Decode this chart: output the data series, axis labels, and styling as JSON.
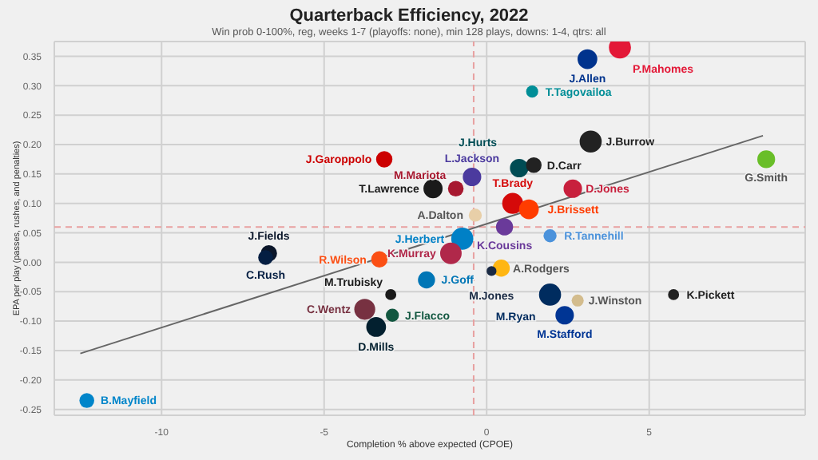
{
  "chart_data": {
    "type": "bubble",
    "title": "Quarterback Efficiency, 2022",
    "subtitle": "Win prob 0-100%, reg, weeks 1-7 (playoffs: none), min 128 plays, downs: 1-4, qtrs: all",
    "xlabel": "Completion % above expected (CPOE)",
    "ylabel": "EPA per play (passes, rushes, and penalties)",
    "xlim": [
      -13.3,
      9.8
    ],
    "ylim": [
      -0.26,
      0.375
    ],
    "xticks": [
      -10,
      -5,
      0,
      5
    ],
    "yticks": [
      {
        "value": -0.25,
        "label": "-0.25"
      },
      {
        "value": -0.2,
        "label": "-0.20"
      },
      {
        "value": -0.15,
        "label": "-0.15"
      },
      {
        "value": -0.1,
        "label": "-0.10"
      },
      {
        "value": -0.05,
        "label": "-0.05"
      },
      {
        "value": 0,
        "label": "0.00"
      },
      {
        "value": 0.05,
        "label": "0.05"
      },
      {
        "value": 0.1,
        "label": "0.10"
      },
      {
        "value": 0.15,
        "label": "0.15"
      },
      {
        "value": 0.2,
        "label": "0.20"
      },
      {
        "value": 0.25,
        "label": "0.25"
      },
      {
        "value": 0.3,
        "label": "0.30"
      },
      {
        "value": 0.35,
        "label": "0.35"
      }
    ],
    "grid": true,
    "legend": false,
    "ref_lines": [
      {
        "axis": "x",
        "value": -0.4,
        "color": "#e8a0a0",
        "line_style": "dashed"
      },
      {
        "axis": "y",
        "value": 0.06,
        "color": "#e8a0a0",
        "line_style": "dashed"
      }
    ],
    "series": [
      {
        "type": "line",
        "color": "#666666",
        "x": [
          -12.5,
          8.5
        ],
        "values": [
          -0.155,
          0.215
        ]
      },
      {
        "name": "P.Mahomes",
        "color": "#e31837",
        "x": [
          4.1
        ],
        "values": [
          0.365
        ],
        "sizes": [
          1
        ]
      },
      {
        "name": "J.Allen",
        "color": "#00338d",
        "x": [
          3.1
        ],
        "values": [
          0.345
        ],
        "sizes": [
          0.8
        ]
      },
      {
        "name": "T.Tagovailoa",
        "color": "#008e97",
        "x": [
          1.4
        ],
        "values": [
          0.29
        ],
        "sizes": [
          0.3
        ]
      },
      {
        "name": "J.Burrow",
        "color": "#222222",
        "x": [
          3.2
        ],
        "values": [
          0.205
        ],
        "sizes": [
          1
        ]
      },
      {
        "name": "G.Smith",
        "color": "#69be28",
        "x": [
          8.6
        ],
        "values": [
          0.175
        ],
        "sizes": [
          0.65
        ]
      },
      {
        "name": "J.Hurts",
        "color": "#004c54",
        "x": [
          1.0
        ],
        "values": [
          0.16
        ],
        "sizes": [
          0.7
        ]
      },
      {
        "name": "D.Carr",
        "color": "#222222",
        "x": [
          1.45
        ],
        "values": [
          0.165
        ],
        "sizes": [
          0.5
        ]
      },
      {
        "name": "L.Jackson",
        "color": "#4b3a9e",
        "x": [
          -0.45
        ],
        "values": [
          0.145
        ],
        "sizes": [
          0.7
        ]
      },
      {
        "name": "D.Jones",
        "color": "#c8203d",
        "x": [
          2.65
        ],
        "values": [
          0.125
        ],
        "sizes": [
          0.7
        ]
      },
      {
        "name": "M.Mariota",
        "color": "#a71930",
        "x": [
          -0.95
        ],
        "values": [
          0.125
        ],
        "sizes": [
          0.5
        ]
      },
      {
        "name": "T.Lawrence",
        "color": "#1a1a1a",
        "x": [
          -1.65
        ],
        "values": [
          0.125
        ],
        "sizes": [
          0.75
        ]
      },
      {
        "name": "J.Garoppolo",
        "color": "#cc0000",
        "x": [
          -3.15
        ],
        "values": [
          0.175
        ],
        "sizes": [
          0.55
        ]
      },
      {
        "name": "T.Brady",
        "color": "#d50a0a",
        "x": [
          0.8
        ],
        "values": [
          0.1
        ],
        "sizes": [
          0.9
        ]
      },
      {
        "name": "J.Brissett",
        "color": "#ff3c00",
        "x": [
          1.3
        ],
        "values": [
          0.09
        ],
        "sizes": [
          0.8
        ]
      },
      {
        "name": "A.Dalton",
        "color": "#e8cfa8",
        "x": [
          -0.35
        ],
        "values": [
          0.08
        ],
        "sizes": [
          0.35
        ]
      },
      {
        "name": "K.Cousins",
        "color": "#6a3a9a",
        "x": [
          0.55
        ],
        "values": [
          0.06
        ],
        "sizes": [
          0.6
        ]
      },
      {
        "name": "R.Tannehill",
        "color": "#4b92db",
        "x": [
          1.95
        ],
        "values": [
          0.045
        ],
        "sizes": [
          0.35
        ]
      },
      {
        "name": "J.Herbert",
        "color": "#0080c6",
        "x": [
          -0.75
        ],
        "values": [
          0.04
        ],
        "sizes": [
          1
        ]
      },
      {
        "name": "K.Murray",
        "color": "#b0284a",
        "x": [
          -1.1
        ],
        "values": [
          0.015
        ],
        "sizes": [
          0.95
        ]
      },
      {
        "name": "A.Rodgers",
        "color": "#ffb612",
        "x": [
          0.45
        ],
        "values": [
          -0.01
        ],
        "sizes": [
          0.6
        ]
      },
      {
        "name": "M.Jones",
        "color": "#1a2a44",
        "x": [
          0.15
        ],
        "values": [
          -0.015
        ],
        "sizes": [
          0.2
        ]
      },
      {
        "name": "J.Goff",
        "color": "#0076b6",
        "x": [
          -1.85
        ],
        "values": [
          -0.03
        ],
        "sizes": [
          0.6
        ]
      },
      {
        "name": "M.Ryan",
        "color": "#002c5f",
        "x": [
          1.95
        ],
        "values": [
          -0.055
        ],
        "sizes": [
          1
        ]
      },
      {
        "name": "J.Winston",
        "color": "#d3bc8d",
        "x": [
          2.8
        ],
        "values": [
          -0.065
        ],
        "sizes": [
          0.3
        ]
      },
      {
        "name": "M.Stafford",
        "color": "#003594",
        "x": [
          2.4
        ],
        "values": [
          -0.09
        ],
        "sizes": [
          0.7
        ]
      },
      {
        "name": "K.Pickett",
        "color": "#222222",
        "x": [
          5.75
        ],
        "values": [
          -0.055
        ],
        "sizes": [
          0.25
        ]
      },
      {
        "name": "R.Wilson",
        "color": "#fb4f14",
        "x": [
          -3.3
        ],
        "values": [
          0.005
        ],
        "sizes": [
          0.55
        ]
      },
      {
        "name": "J.Fields",
        "color": "#0b162a",
        "x": [
          -6.7
        ],
        "values": [
          0.015
        ],
        "sizes": [
          0.55
        ]
      },
      {
        "name": "C.Rush",
        "color": "#041e42",
        "x": [
          -6.8
        ],
        "values": [
          0.008
        ],
        "sizes": [
          0.45
        ]
      },
      {
        "name": "M.Trubisky",
        "color": "#1a1a1a",
        "x": [
          -2.95
        ],
        "values": [
          -0.055
        ],
        "sizes": [
          0.25
        ]
      },
      {
        "name": "C.Wentz",
        "color": "#773141",
        "x": [
          -3.75
        ],
        "values": [
          -0.08
        ],
        "sizes": [
          0.9
        ]
      },
      {
        "name": "J.Flacco",
        "color": "#125740",
        "x": [
          -2.9
        ],
        "values": [
          -0.09
        ],
        "sizes": [
          0.35
        ]
      },
      {
        "name": "D.Mills",
        "color": "#03202f",
        "x": [
          -3.4
        ],
        "values": [
          -0.11
        ],
        "sizes": [
          0.8
        ]
      },
      {
        "name": "B.Mayfield",
        "color": "#0085ca",
        "x": [
          -12.3
        ],
        "values": [
          -0.235
        ],
        "sizes": [
          0.45
        ]
      }
    ]
  }
}
